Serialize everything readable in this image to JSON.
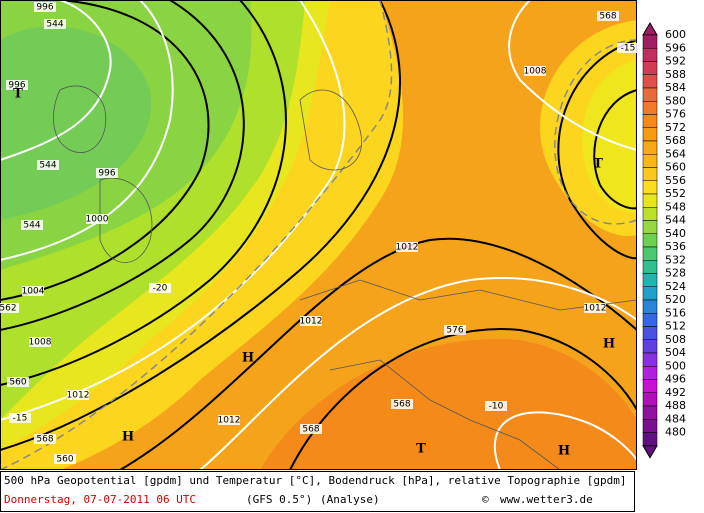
{
  "colorbar": {
    "labels": [
      600,
      596,
      592,
      588,
      584,
      580,
      576,
      572,
      568,
      564,
      560,
      556,
      552,
      548,
      544,
      540,
      536,
      532,
      528,
      524,
      520,
      516,
      512,
      508,
      504,
      500,
      496,
      492,
      488,
      484,
      480
    ],
    "colors": [
      "#a01f63",
      "#c0305f",
      "#d23a55",
      "#e0504a",
      "#ea6a3a",
      "#f07a2a",
      "#f48a1a",
      "#f69a16",
      "#f8a818",
      "#f9b61a",
      "#fbc820",
      "#fcdc20",
      "#e6e61e",
      "#bce02a",
      "#96d840",
      "#6cd050",
      "#4cc870",
      "#30c090",
      "#22b4b0",
      "#20a0c8",
      "#2a84d8",
      "#3668e0",
      "#4a50e0",
      "#6040e0",
      "#8a30e0",
      "#b020e0",
      "#c810d0",
      "#b010b8",
      "#9010a0",
      "#781090",
      "#601080"
    ]
  },
  "map_labels": [
    "996",
    "544",
    "996",
    "T",
    "544",
    "996",
    "1000",
    "544",
    "1004",
    "562",
    "1008",
    "-20",
    "560",
    "1012",
    "-15",
    "568",
    "H",
    "560",
    "1012",
    "H",
    "1012",
    "1012",
    "576",
    "568",
    "568",
    "-10",
    "T",
    "H",
    "1012",
    "H",
    "T",
    "1008",
    "568",
    "-15"
  ],
  "footer": {
    "line1": "500 hPa Geopotential [gpdm] und Temperatur [°C], Bodendruck [hPa], relative Topographie [gpdm]",
    "date": "Donnerstag, 07-07-2011  06 UTC",
    "model": "(GFS 0.5°)",
    "run": "(Analyse)",
    "copyright": "©",
    "site": "www.wetter3.de"
  }
}
